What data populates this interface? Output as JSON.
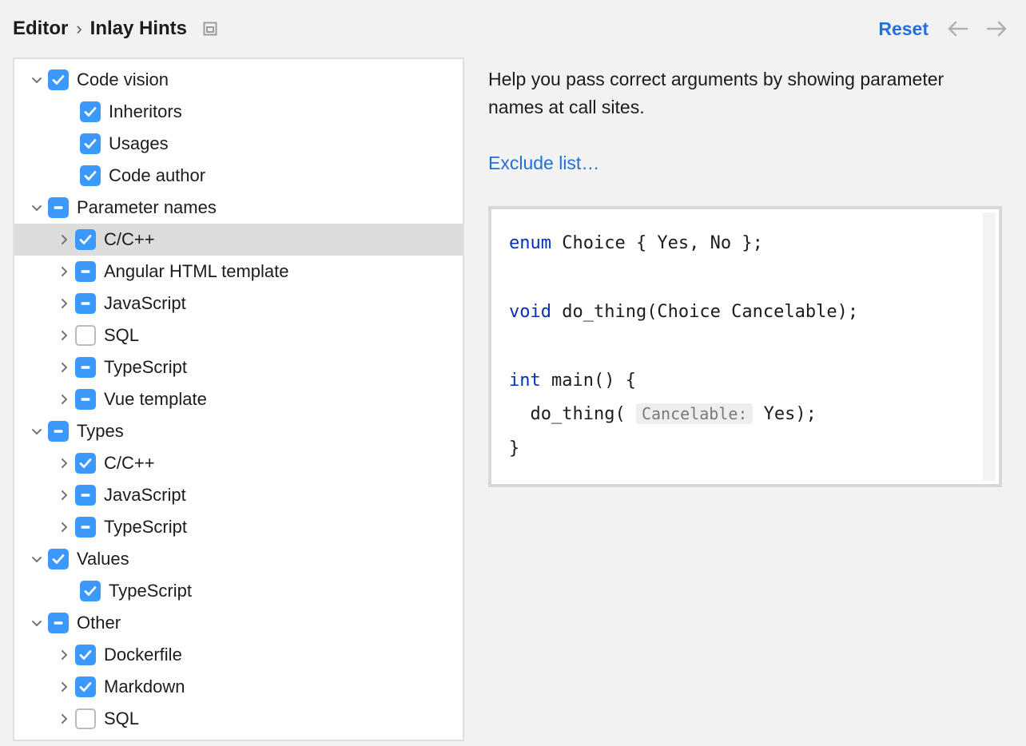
{
  "colors": {
    "accent": "#3b99fc",
    "link": "#2470d8",
    "page_bg": "#f2f2f2",
    "panel_bg": "#ffffff",
    "panel_border": "#e0e0e0",
    "selected_row_bg": "#dcdcdc",
    "code_border": "#d8d8d8",
    "hint_bg": "#eeeeee",
    "hint_fg": "#7a7a7a",
    "keyword": "#0033b3"
  },
  "header": {
    "breadcrumb": [
      "Editor",
      "Inlay Hints"
    ],
    "reset_label": "Reset"
  },
  "detail": {
    "description": "Help you pass correct arguments by showing parameter names at call sites.",
    "exclude_link": "Exclude list…",
    "code": {
      "line1_kw": "enum",
      "line1_rest": " Choice { Yes, No };",
      "line2_kw": "void",
      "line2_rest": " do_thing(Choice Cancelable);",
      "line3_kw": "int",
      "line3_rest": " main() {",
      "line4_prefix": "  do_thing( ",
      "line4_hint": "Cancelable:",
      "line4_suffix": " Yes);",
      "line5": "}"
    }
  },
  "tree": [
    {
      "depth": 0,
      "label": "Code vision",
      "state": "checked",
      "expander": "down",
      "selected": false
    },
    {
      "depth": 1,
      "label": "Inheritors",
      "state": "checked",
      "expander": "none",
      "selected": false
    },
    {
      "depth": 1,
      "label": "Usages",
      "state": "checked",
      "expander": "none",
      "selected": false
    },
    {
      "depth": 1,
      "label": "Code author",
      "state": "checked",
      "expander": "none",
      "selected": false
    },
    {
      "depth": 0,
      "label": "Parameter names",
      "state": "partial",
      "expander": "down",
      "selected": false
    },
    {
      "depth": 1,
      "label": "C/C++",
      "state": "checked",
      "expander": "right",
      "selected": true
    },
    {
      "depth": 1,
      "label": "Angular HTML template",
      "state": "partial",
      "expander": "right",
      "selected": false
    },
    {
      "depth": 1,
      "label": "JavaScript",
      "state": "partial",
      "expander": "right",
      "selected": false
    },
    {
      "depth": 1,
      "label": "SQL",
      "state": "unchecked",
      "expander": "right",
      "selected": false
    },
    {
      "depth": 1,
      "label": "TypeScript",
      "state": "partial",
      "expander": "right",
      "selected": false
    },
    {
      "depth": 1,
      "label": "Vue template",
      "state": "partial",
      "expander": "right",
      "selected": false
    },
    {
      "depth": 0,
      "label": "Types",
      "state": "partial",
      "expander": "down",
      "selected": false
    },
    {
      "depth": 1,
      "label": "C/C++",
      "state": "checked",
      "expander": "right",
      "selected": false
    },
    {
      "depth": 1,
      "label": "JavaScript",
      "state": "partial",
      "expander": "right",
      "selected": false
    },
    {
      "depth": 1,
      "label": "TypeScript",
      "state": "partial",
      "expander": "right",
      "selected": false
    },
    {
      "depth": 0,
      "label": "Values",
      "state": "checked",
      "expander": "down",
      "selected": false
    },
    {
      "depth": 1,
      "label": "TypeScript",
      "state": "checked",
      "expander": "none",
      "selected": false
    },
    {
      "depth": 0,
      "label": "Other",
      "state": "partial",
      "expander": "down",
      "selected": false
    },
    {
      "depth": 1,
      "label": "Dockerfile",
      "state": "checked",
      "expander": "right",
      "selected": false
    },
    {
      "depth": 1,
      "label": "Markdown",
      "state": "checked",
      "expander": "right",
      "selected": false
    },
    {
      "depth": 1,
      "label": "SQL",
      "state": "unchecked",
      "expander": "right",
      "selected": false
    }
  ]
}
